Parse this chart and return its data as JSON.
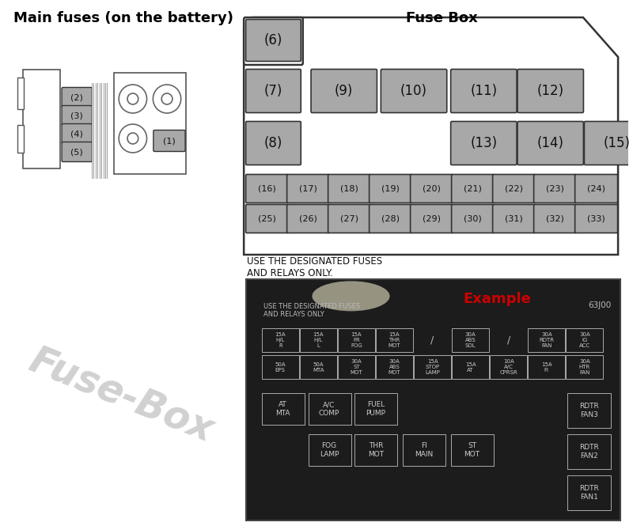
{
  "title_left": "Main fuses (on the battery)",
  "title_right": "Fuse Box",
  "bg_color": "#ffffff",
  "fuse_bg": "#a8a8a8",
  "fuse_border": "#333333",
  "watermark_color": "#cccccc",
  "watermark_text": "Fuse-Box",
  "example_label": "Example",
  "example_color": "#cc0000",
  "footnote": "USE THE DESIGNATED FUSES\nAND RELAYS ONLY.",
  "small_fuses_row1": [
    "(16)",
    "(17)",
    "(18)",
    "(19)",
    "(20)",
    "(21)",
    "(22)",
    "(23)",
    "(24)"
  ],
  "small_fuses_row2": [
    "(25)",
    "(26)",
    "(27)",
    "(28)",
    "(29)",
    "(30)",
    "(31)",
    "(32)",
    "(33)"
  ],
  "big_fuses_row1": [
    "(7)",
    "(9)",
    "(10)",
    "(11)",
    "(12)"
  ],
  "big_fuses_row2_left": "(8)",
  "big_fuses_row2_right": [
    "(13)",
    "(14)",
    "(15)"
  ],
  "fuse6": "(6)",
  "battery_labels": [
    "(2)",
    "(3)",
    "(4)",
    "(5)"
  ],
  "battery_label1": "(1)",
  "photo_grid_rows": [
    [
      "15A\nH/L\nR",
      "15A\nH/L\nL",
      "15A\nFR\nFOG",
      "15A\nTHR\nMOT",
      "/",
      "30A\nABS\nSOL",
      "/",
      "30A\nRDTR\nFAN",
      "30A\nIG\nACC"
    ],
    [
      "50A\nEPS",
      "50A\nMTA",
      "30A\nST\nMOT",
      "30A\nABS\nMOT",
      "15A\nSTOP\nLAMP",
      "15A\nAT",
      "10A\nA/C\nCPRSR",
      "15A\nFI",
      "30A\nHTR\nFAN"
    ]
  ],
  "photo_bottom_row1": [
    [
      "AT\nMTA",
      "A/C\nCOMP",
      "FUEL\nPUMP"
    ]
  ],
  "photo_bottom_row2": [
    [
      "FOG\nLAMP",
      "THR\nMOT",
      "FI\nMAIN",
      "ST\nMOT"
    ]
  ],
  "rdtr_cells": [
    "RDTR\nFAN3",
    "RDTR\nFAN2",
    "RDTR\nFAN1"
  ],
  "part_number": "63J00"
}
